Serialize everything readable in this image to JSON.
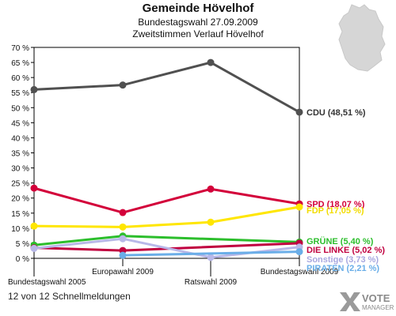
{
  "header": {
    "title": "Gemeinde Hövelhof",
    "subtitle": "Bundestagswahl 27.09.2009",
    "subtitle2": "Zweitstimmen Verlauf Hövelhof"
  },
  "footer": {
    "text": "12 von 12 Schnellmeldungen"
  },
  "logo": {
    "line1": "VOTE",
    "line2": "MANAGER"
  },
  "chart_data": {
    "type": "line",
    "x": [
      "Bundestagswahl 2005",
      "Europawahl 2009",
      "Ratswahl 2009",
      "Bundestagswahl 2009"
    ],
    "y_ticks": [
      "0 %",
      "5 %",
      "10 %",
      "15 %",
      "20 %",
      "25 %",
      "30 %",
      "35 %",
      "40 %",
      "45 %",
      "50 %",
      "55 %",
      "60 %",
      "65 %",
      "70 %"
    ],
    "ylim": [
      0,
      70
    ],
    "grid": false,
    "series": [
      {
        "name": "CDU",
        "label": "CDU (48,51 %)",
        "color": "#505050",
        "label_color": "#333333",
        "values": [
          56.0,
          57.5,
          65.0,
          48.51
        ]
      },
      {
        "name": "SPD",
        "label": "SPD (18,07 %)",
        "color": "#d3003a",
        "label_color": "#d3003a",
        "values": [
          23.3,
          15.2,
          23.0,
          18.07
        ]
      },
      {
        "name": "FDP",
        "label": "FDP (17,05 %)",
        "color": "#ffe600",
        "label_color": "#f2dc00",
        "values": [
          10.7,
          10.4,
          12.0,
          17.05
        ]
      },
      {
        "name": "GRÜNE",
        "label": "GRÜNE (5,40 %)",
        "color": "#2cbe2c",
        "label_color": "#2cbe2c",
        "values": [
          4.4,
          7.4,
          null,
          5.4
        ]
      },
      {
        "name": "DIE LINKE",
        "label": "DIE LINKE (5,02 %)",
        "color": "#c0003f",
        "label_color": "#c0003f",
        "values": [
          3.5,
          2.6,
          null,
          5.02
        ]
      },
      {
        "name": "Sonstige",
        "label": "Sonstige (3,73 %)",
        "color": "#b8b8e8",
        "label_color": "#a8a8e0",
        "values": [
          3.3,
          6.5,
          0.3,
          3.73
        ]
      },
      {
        "name": "PIRATEN",
        "label": "PIRATEN (2,21 %)",
        "color": "#6aaee8",
        "label_color": "#6aaee8",
        "values": [
          null,
          1.0,
          null,
          2.21
        ]
      }
    ]
  }
}
